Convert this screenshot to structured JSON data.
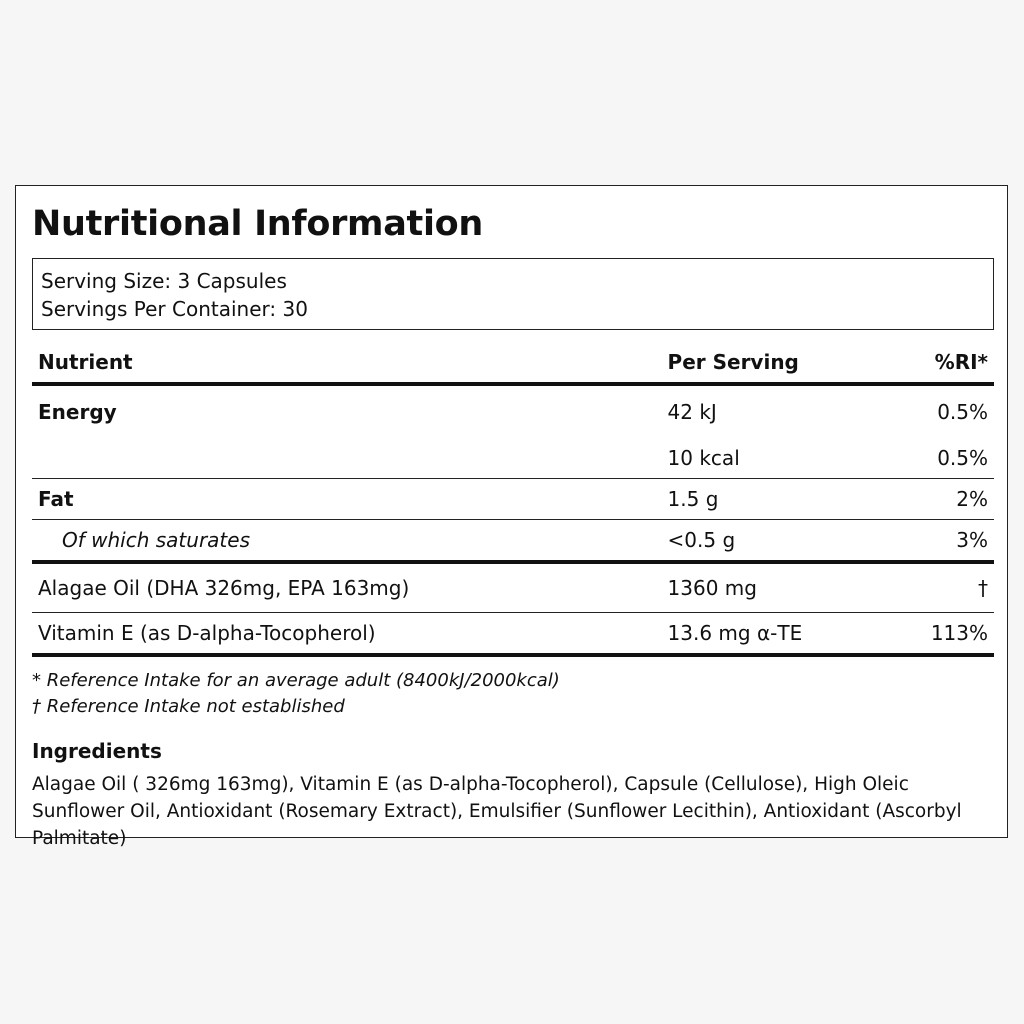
{
  "title": "Nutritional Information",
  "serving": {
    "size": "Serving Size: 3 Capsules",
    "per_container": "Servings Per Container: 30"
  },
  "table": {
    "headers": {
      "nutrient": "Nutrient",
      "per_serving": "Per Serving",
      "ri": "%RI*"
    },
    "rows": [
      {
        "nutrient": "Energy",
        "per_serving": "42 kJ",
        "ri": "0.5%"
      },
      {
        "nutrient": "",
        "per_serving": "10 kcal",
        "ri": "0.5%"
      },
      {
        "nutrient": "Fat",
        "per_serving": "1.5 g",
        "ri": "2%"
      },
      {
        "nutrient": "Of which saturates",
        "per_serving": "<0.5 g",
        "ri": "3%"
      },
      {
        "nutrient": "Alagae Oil (DHA 326mg, EPA 163mg)",
        "per_serving": "1360 mg",
        "ri": "†"
      },
      {
        "nutrient": "Vitamin E (as D-alpha-Tocopherol)",
        "per_serving": "13.6 mg α-TE",
        "ri": "113%"
      }
    ]
  },
  "footnotes": [
    "* Reference Intake for an average adult (8400kJ/2000kcal)",
    "† Reference Intake not established"
  ],
  "ingredients": {
    "title": "Ingredients",
    "text": "Alagae Oil ( 326mg 163mg), Vitamin E (as D-alpha-Tocopherol), Capsule (Cellulose), High Oleic Sunflower Oil, Antioxidant (Rosemary Extract), Emulsifier (Sunflower Lecithin), Antioxidant (Ascorbyl Palmitate)"
  }
}
